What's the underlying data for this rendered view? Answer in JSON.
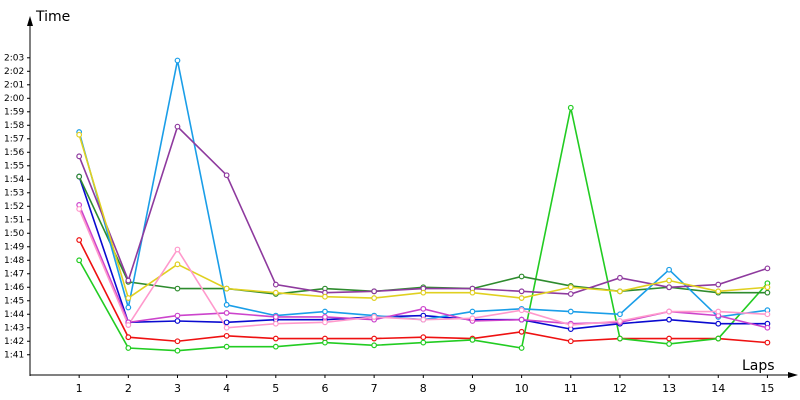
{
  "chart_data": {
    "type": "line",
    "y_label": "Time",
    "x_label": "Laps",
    "x": [
      1,
      2,
      3,
      4,
      5,
      6,
      7,
      8,
      9,
      10,
      11,
      12,
      13,
      14,
      15
    ],
    "xlim": [
      0,
      15.5
    ],
    "xticks": [
      1,
      2,
      3,
      4,
      5,
      6,
      7,
      8,
      9,
      10,
      11,
      12,
      13,
      14,
      15
    ],
    "ylim": [
      99.5,
      125.8
    ],
    "yticks": [
      {
        "value": 101,
        "label": "1:41"
      },
      {
        "value": 102,
        "label": "1:42"
      },
      {
        "value": 103,
        "label": "1:43"
      },
      {
        "value": 104,
        "label": "1:44"
      },
      {
        "value": 105,
        "label": "1:45"
      },
      {
        "value": 106,
        "label": "1:46"
      },
      {
        "value": 107,
        "label": "1:47"
      },
      {
        "value": 108,
        "label": "1:48"
      },
      {
        "value": 109,
        "label": "1:49"
      },
      {
        "value": 110,
        "label": "1:50"
      },
      {
        "value": 111,
        "label": "1:51"
      },
      {
        "value": 112,
        "label": "1:52"
      },
      {
        "value": 113,
        "label": "1:53"
      },
      {
        "value": 114,
        "label": "1:54"
      },
      {
        "value": 115,
        "label": "1:55"
      },
      {
        "value": 116,
        "label": "1:56"
      },
      {
        "value": 117,
        "label": "1:57"
      },
      {
        "value": 118,
        "label": "1:58"
      },
      {
        "value": 119,
        "label": "1:59"
      },
      {
        "value": 120,
        "label": "2:00"
      },
      {
        "value": 121,
        "label": "2:01"
      },
      {
        "value": 122,
        "label": "2:02"
      },
      {
        "value": 123,
        "label": "2:03"
      }
    ],
    "grid": false,
    "series": [
      {
        "color": "#ee1111",
        "values": [
          109.5,
          102.3,
          102,
          102.4,
          102.2,
          102.2,
          102.2,
          102.3,
          102.2,
          102.7,
          102,
          102.2,
          102.2,
          102.2,
          101.9
        ]
      },
      {
        "color": "#22cc22",
        "values": [
          108,
          101.5,
          101.3,
          101.6,
          101.6,
          101.9,
          101.7,
          101.9,
          102.1,
          101.5,
          119.3,
          102.2,
          101.8,
          102.2,
          106.3
        ]
      },
      {
        "color": "#0a0ad0",
        "values": [
          114.2,
          103.4,
          103.5,
          103.4,
          103.6,
          103.6,
          103.8,
          103.9,
          103.6,
          103.6,
          102.9,
          103.3,
          103.6,
          103.3,
          103.3
        ]
      },
      {
        "color": "#2e8b2e",
        "values": [
          114.2,
          106.4,
          105.9,
          105.9,
          105.5,
          105.9,
          105.7,
          106,
          105.9,
          106.8,
          106.1,
          105.7,
          106,
          105.6,
          105.6
        ]
      },
      {
        "color": "#1a9ee8",
        "values": [
          117.5,
          104.5,
          122.8,
          104.7,
          103.9,
          104.2,
          103.9,
          103.6,
          104.2,
          104.4,
          104.2,
          104,
          107.3,
          103.8,
          104.3
        ]
      },
      {
        "color": "#8e3a9e",
        "values": [
          115.7,
          106.5,
          117.9,
          114.3,
          106.2,
          105.6,
          105.7,
          105.9,
          105.9,
          105.7,
          105.5,
          106.7,
          106,
          106.2,
          107.4
        ]
      },
      {
        "color": "#e0d020",
        "values": [
          117.3,
          105.2,
          107.7,
          105.9,
          105.6,
          105.3,
          105.2,
          105.6,
          105.6,
          105.2,
          106,
          105.7,
          106.5,
          105.7,
          106
        ]
      },
      {
        "color": "#cc44cc",
        "values": [
          112.1,
          103.4,
          103.9,
          104.1,
          103.8,
          103.8,
          103.6,
          104.4,
          103.5,
          103.6,
          103.3,
          103.4,
          104.2,
          103.9,
          103
        ]
      },
      {
        "color": "#ff99cc",
        "values": [
          111.8,
          103.2,
          108.8,
          103,
          103.3,
          103.4,
          103.8,
          103.6,
          103.7,
          104.3,
          103.2,
          103.5,
          104.2,
          104.2,
          104
        ]
      }
    ]
  }
}
